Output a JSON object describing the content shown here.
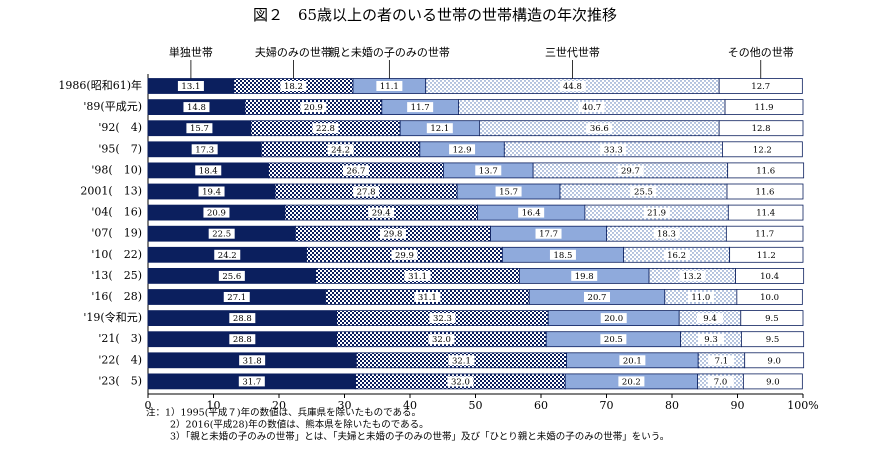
{
  "chart_data": {
    "type": "stacked-bar-horizontal",
    "title": "図２　65歳以上の者のいる世帯の世帯構造の年次推移",
    "categories": [
      "1986(昭和61)年",
      "'89(平成元)",
      "'92(　4)",
      "'95(　7)",
      "'98(　10)",
      "2001(　13)",
      "'04(　16)",
      "'07(　19)",
      "'10(　22)",
      "'13(　25)",
      "'16(　28)",
      "'19(令和元)",
      "'21(　3)",
      "'22(　4)",
      "'23(　5)"
    ],
    "series": [
      {
        "name": "単独世帯",
        "color": "#0b1f5e",
        "pattern": "solid",
        "values": [
          13.1,
          14.8,
          15.7,
          17.3,
          18.4,
          19.4,
          20.9,
          22.5,
          24.2,
          25.6,
          27.1,
          28.8,
          28.8,
          31.8,
          31.7
        ],
        "value_labels": [
          "13.1",
          "14.8",
          "15.7",
          "17.3",
          "18.4",
          "19.4",
          "20.9",
          "22.5",
          "24.2",
          "25.6",
          "27.1",
          "28.8",
          "28.8",
          "31.8",
          "31.7"
        ]
      },
      {
        "name": "夫婦のみの世帯",
        "color": "#0b1f5e",
        "pattern": "checker",
        "values": [
          18.2,
          20.9,
          22.8,
          24.2,
          26.7,
          27.8,
          29.4,
          29.8,
          29.9,
          31.1,
          31.1,
          32.3,
          32.0,
          32.1,
          32.0
        ],
        "value_labels": [
          "18.2",
          "20.9",
          "22.8",
          "24.2",
          "26.7",
          "27.8",
          "29.4",
          "29.8",
          "29.9",
          "31.1",
          "31.1",
          "32.3",
          "32.0",
          "32.1",
          "32.0"
        ]
      },
      {
        "name": "親と未婚の子のみの世帯",
        "color": "#8faadc",
        "pattern": "solid",
        "values": [
          11.1,
          11.7,
          12.1,
          12.9,
          13.7,
          15.7,
          16.4,
          17.7,
          18.5,
          19.8,
          20.7,
          20.0,
          20.5,
          20.1,
          20.2
        ],
        "value_labels": [
          "11.1",
          "11.7",
          "12.1",
          "12.9",
          "13.7",
          "15.7",
          "16.4",
          "17.7",
          "18.5",
          "19.8",
          "20.7",
          "20.0",
          "20.5",
          "20.1",
          "20.2"
        ]
      },
      {
        "name": "三世代世帯",
        "color": "#4a6fb0",
        "pattern": "dots",
        "values": [
          44.8,
          40.7,
          36.6,
          33.3,
          29.7,
          25.5,
          21.9,
          18.3,
          16.2,
          13.2,
          11.0,
          9.4,
          9.3,
          7.1,
          7.0
        ],
        "value_labels": [
          "44.8",
          "40.7",
          "36.6",
          "33.3",
          "29.7",
          "25.5",
          "21.9",
          "18.3",
          "16.2",
          "13.2",
          "11.0",
          "9.4",
          "9.3",
          "7.1",
          "7.0"
        ]
      },
      {
        "name": "その他の世帯",
        "color": "#ffffff",
        "pattern": "solid",
        "values": [
          12.7,
          11.9,
          12.8,
          12.2,
          11.6,
          11.6,
          11.4,
          11.7,
          11.2,
          10.4,
          10.0,
          9.5,
          9.5,
          9.0,
          9.0
        ],
        "value_labels": [
          "12.7",
          "11.9",
          "12.8",
          "12.2",
          "11.6",
          "11.6",
          "11.4",
          "11.7",
          "11.2",
          "10.4",
          "10.0",
          "9.5",
          "9.5",
          "9.0",
          "9.0"
        ]
      }
    ],
    "xlim": [
      0,
      100
    ],
    "xticks": [
      0,
      10,
      20,
      30,
      40,
      50,
      60,
      70,
      80,
      90,
      {
        "value": 100,
        "label": "100%"
      }
    ],
    "notes": [
      "注：1）1995(平成７)年の数値は、兵庫県を除いたものである。",
      "2）2016(平成28)年の数値は、熊本県を除いたものである。",
      "3）「親と未婚の子のみの世帯」とは、「夫婦と未婚の子のみの世帯」及び「ひとり親と未婚の子のみの世帯」をいう。"
    ]
  }
}
